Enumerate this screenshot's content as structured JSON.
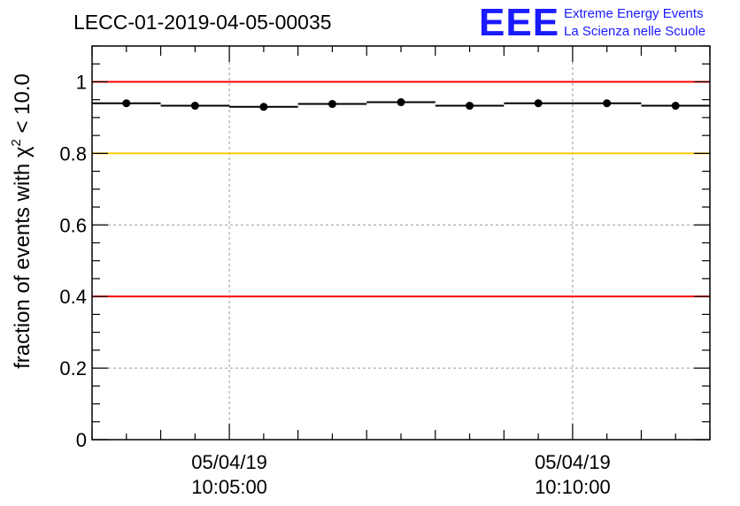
{
  "title": "LECC-01-2019-04-05-00035",
  "logo": {
    "mark": "EEE",
    "line1": "Extreme Energy Events",
    "line2": "La Scienza nelle Scuole",
    "color": "#1a1aff"
  },
  "chart_data": {
    "type": "scatter",
    "title": "LECC-01-2019-04-05-00035",
    "ylabel_prefix": "fraction of events with ",
    "ylabel_symbol": "χ",
    "ylabel_sup": "2",
    "ylabel_suffix": " < 10.0",
    "xlabel": "",
    "ylim": [
      0,
      1.1
    ],
    "xlim": [
      "10:03:00",
      "10:12:00"
    ],
    "yticks": [
      {
        "value": 0,
        "label": "0"
      },
      {
        "value": 0.2,
        "label": "0.2"
      },
      {
        "value": 0.4,
        "label": "0.4"
      },
      {
        "value": 0.6,
        "label": "0.6"
      },
      {
        "value": 0.8,
        "label": "0.8"
      },
      {
        "value": 1,
        "label": "1"
      }
    ],
    "xticks": [
      {
        "time": "10:05:00",
        "date_label": "05/04/19",
        "time_label": "10:05:00"
      },
      {
        "time": "10:10:00",
        "date_label": "05/04/19",
        "time_label": "10:10:00"
      }
    ],
    "reference_lines": [
      {
        "y": 1.0,
        "color": "#ff0000"
      },
      {
        "y": 0.8,
        "color": "#ffcc00"
      },
      {
        "y": 0.4,
        "color": "#ff0000"
      }
    ],
    "grid": true,
    "series": [
      {
        "points": [
          {
            "start": "10:03:00",
            "end": "10:04:00",
            "y": 0.94
          },
          {
            "start": "10:04:00",
            "end": "10:05:00",
            "y": 0.933
          },
          {
            "start": "10:05:00",
            "end": "10:06:00",
            "y": 0.93
          },
          {
            "start": "10:06:00",
            "end": "10:07:00",
            "y": 0.938
          },
          {
            "start": "10:07:00",
            "end": "10:08:00",
            "y": 0.943
          },
          {
            "start": "10:08:00",
            "end": "10:09:00",
            "y": 0.933
          },
          {
            "start": "10:09:00",
            "end": "10:10:00",
            "y": 0.94
          },
          {
            "start": "10:10:00",
            "end": "10:11:00",
            "y": 0.94
          },
          {
            "start": "10:11:00",
            "end": "10:12:00",
            "y": 0.933
          }
        ],
        "color": "#000000"
      }
    ]
  }
}
